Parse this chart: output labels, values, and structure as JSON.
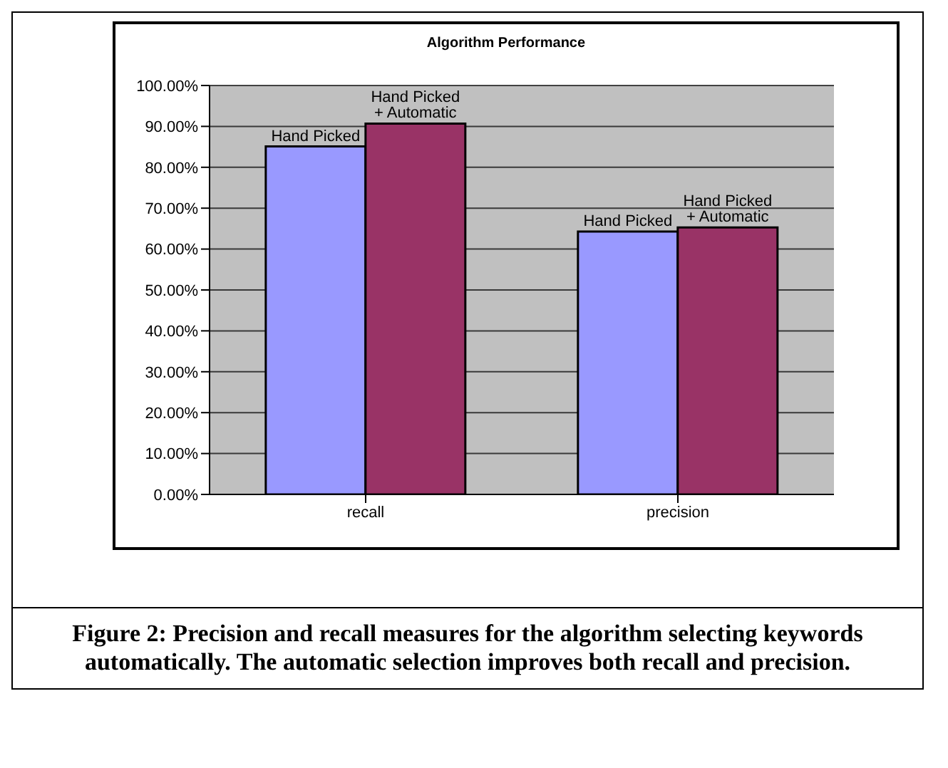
{
  "chart_data": {
    "type": "bar",
    "title": "Algorithm Performance",
    "categories": [
      "recall",
      "precision"
    ],
    "series": [
      {
        "name": "Hand Picked",
        "color": "#9999ff",
        "values": [
          85.1,
          64.3
        ]
      },
      {
        "name": "Hand Picked + Automatic",
        "color": "#993366",
        "values": [
          90.7,
          65.3
        ]
      }
    ],
    "ylim": [
      0,
      100
    ],
    "yticks": [
      {
        "value": 0,
        "label": "0.00%"
      },
      {
        "value": 10,
        "label": "10.00%"
      },
      {
        "value": 20,
        "label": "20.00%"
      },
      {
        "value": 30,
        "label": "30.00%"
      },
      {
        "value": 40,
        "label": "40.00%"
      },
      {
        "value": 50,
        "label": "50.00%"
      },
      {
        "value": 60,
        "label": "60.00%"
      },
      {
        "value": 70,
        "label": "70.00%"
      },
      {
        "value": 80,
        "label": "80.00%"
      },
      {
        "value": 90,
        "label": "90.00%"
      },
      {
        "value": 100,
        "label": "100.00%"
      }
    ],
    "grid": "y",
    "legend": false,
    "annotations": [
      "Figure 2: Precision and recall measures for the algorithm selecting keywords automatically. The automatic selection improves both recall and precision."
    ]
  }
}
